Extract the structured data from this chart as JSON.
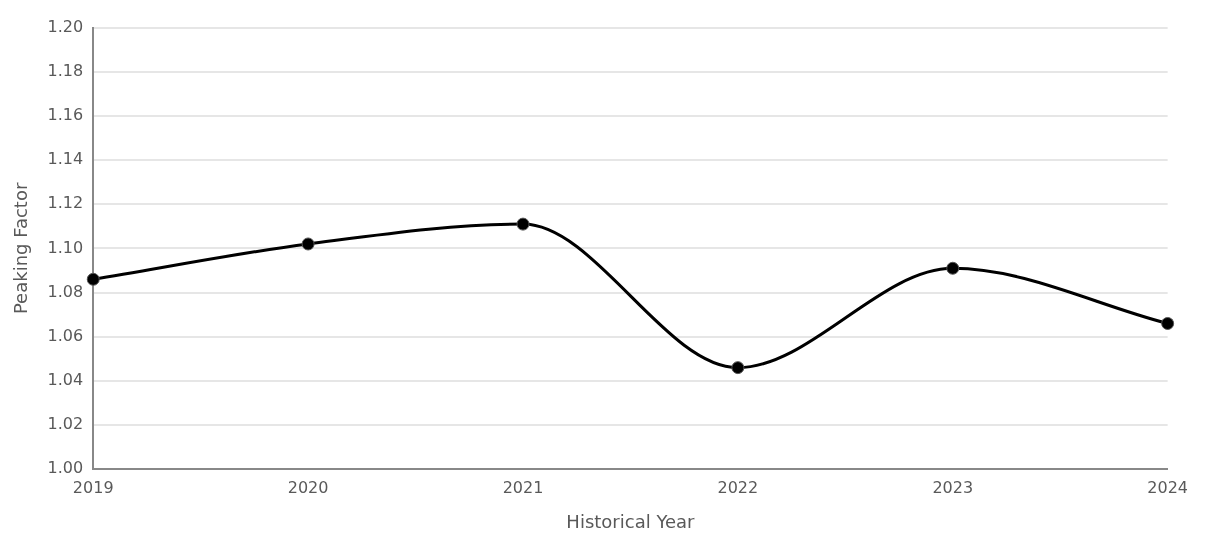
{
  "chart_data": {
    "type": "line",
    "xlabel": "Historical Year",
    "ylabel": "Peaking Factor",
    "categories": [
      "2019",
      "2020",
      "2021",
      "2022",
      "2023",
      "2024"
    ],
    "series": [
      {
        "color": "#000000",
        "values": [
          1.086,
          1.102,
          1.111,
          1.046,
          1.091,
          1.066
        ]
      }
    ],
    "ylim": [
      1.0,
      1.2
    ],
    "yticks": [
      {
        "value": 1.0,
        "label": "1.00"
      },
      {
        "value": 1.02,
        "label": "1.02"
      },
      {
        "value": 1.04,
        "label": "1.04"
      },
      {
        "value": 1.06,
        "label": "1.06"
      },
      {
        "value": 1.08,
        "label": "1.08"
      },
      {
        "value": 1.1,
        "label": "1.10"
      },
      {
        "value": 1.12,
        "label": "1.12"
      },
      {
        "value": 1.14,
        "label": "1.14"
      },
      {
        "value": 1.16,
        "label": "1.16"
      },
      {
        "value": 1.18,
        "label": "1.18"
      },
      {
        "value": 1.2,
        "label": "1.20"
      }
    ],
    "grid": "y",
    "marker": "circle",
    "line_style": "solid",
    "legend": false
  }
}
